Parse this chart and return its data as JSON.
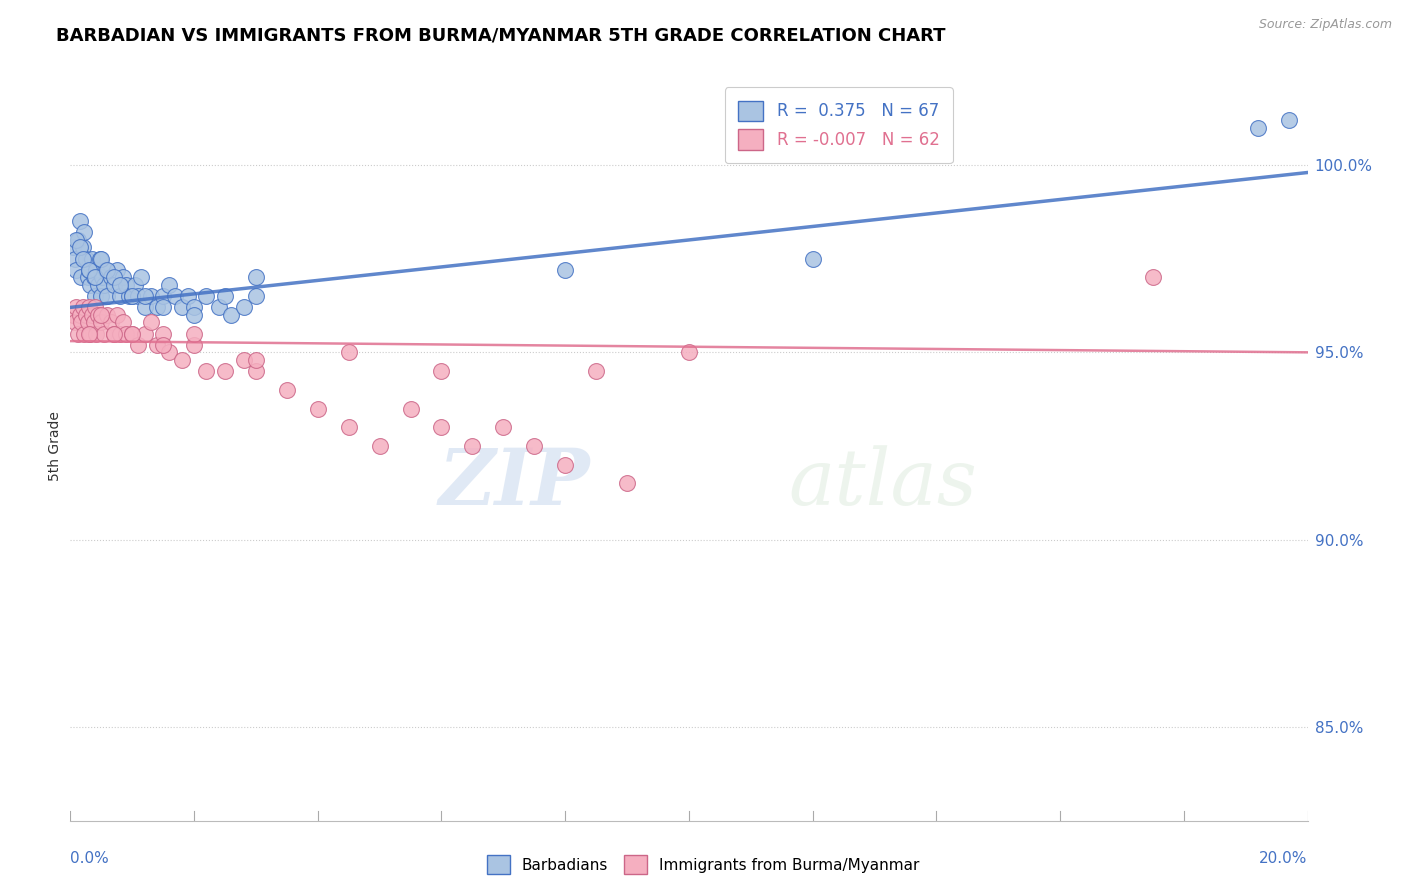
{
  "title": "BARBADIAN VS IMMIGRANTS FROM BURMA/MYANMAR 5TH GRADE CORRELATION CHART",
  "source": "Source: ZipAtlas.com",
  "ylabel": "5th Grade",
  "xlim": [
    0.0,
    20.0
  ],
  "ylim": [
    82.5,
    102.5
  ],
  "yticks_right": [
    85.0,
    90.0,
    95.0,
    100.0
  ],
  "blue_R": 0.375,
  "blue_N": 67,
  "pink_R": -0.007,
  "pink_N": 62,
  "blue_color": "#aac4e2",
  "pink_color": "#f5afc0",
  "blue_line_color": "#4472c4",
  "pink_line_color": "#e07090",
  "legend_label_blue": "Barbadians",
  "legend_label_pink": "Immigrants from Burma/Myanmar",
  "watermark_zip": "ZIP",
  "watermark_atlas": "atlas",
  "blue_scatter_x": [
    0.05,
    0.08,
    0.1,
    0.12,
    0.15,
    0.18,
    0.2,
    0.22,
    0.25,
    0.28,
    0.3,
    0.32,
    0.35,
    0.38,
    0.4,
    0.42,
    0.45,
    0.48,
    0.5,
    0.52,
    0.55,
    0.58,
    0.6,
    0.65,
    0.7,
    0.75,
    0.8,
    0.85,
    0.9,
    0.95,
    1.0,
    1.05,
    1.1,
    1.15,
    1.2,
    1.3,
    1.4,
    1.5,
    1.6,
    1.7,
    1.8,
    1.9,
    2.0,
    2.2,
    2.4,
    2.6,
    2.8,
    3.0,
    0.1,
    0.15,
    0.2,
    0.3,
    0.4,
    0.5,
    0.6,
    0.7,
    0.8,
    1.0,
    1.2,
    1.5,
    2.0,
    2.5,
    3.0,
    8.0,
    12.0,
    19.2,
    19.7
  ],
  "blue_scatter_y": [
    97.8,
    97.5,
    97.2,
    98.0,
    98.5,
    97.0,
    97.8,
    98.2,
    97.5,
    97.0,
    97.2,
    96.8,
    97.5,
    97.0,
    96.5,
    97.2,
    96.8,
    97.5,
    96.5,
    97.0,
    96.8,
    97.2,
    96.5,
    97.0,
    96.8,
    97.2,
    96.5,
    97.0,
    96.8,
    96.5,
    96.5,
    96.8,
    96.5,
    97.0,
    96.2,
    96.5,
    96.2,
    96.5,
    96.8,
    96.5,
    96.2,
    96.5,
    96.2,
    96.5,
    96.2,
    96.0,
    96.2,
    96.5,
    98.0,
    97.8,
    97.5,
    97.2,
    97.0,
    97.5,
    97.2,
    97.0,
    96.8,
    96.5,
    96.5,
    96.2,
    96.0,
    96.5,
    97.0,
    97.2,
    97.5,
    101.0,
    101.2
  ],
  "pink_scatter_x": [
    0.05,
    0.08,
    0.1,
    0.12,
    0.15,
    0.18,
    0.2,
    0.22,
    0.25,
    0.28,
    0.3,
    0.32,
    0.35,
    0.38,
    0.4,
    0.42,
    0.45,
    0.5,
    0.55,
    0.6,
    0.65,
    0.7,
    0.75,
    0.8,
    0.85,
    0.9,
    1.0,
    1.1,
    1.2,
    1.3,
    1.4,
    1.5,
    1.6,
    1.8,
    2.0,
    2.2,
    2.5,
    2.8,
    3.0,
    3.5,
    4.0,
    4.5,
    5.0,
    5.5,
    6.0,
    6.5,
    7.0,
    7.5,
    8.0,
    9.0,
    0.3,
    0.5,
    0.7,
    1.0,
    1.5,
    2.0,
    3.0,
    4.5,
    6.0,
    8.5,
    10.0,
    17.5
  ],
  "pink_scatter_y": [
    96.0,
    95.8,
    96.2,
    95.5,
    96.0,
    95.8,
    96.2,
    95.5,
    96.0,
    95.8,
    96.2,
    95.5,
    96.0,
    95.8,
    96.2,
    95.5,
    96.0,
    95.8,
    95.5,
    96.0,
    95.8,
    95.5,
    96.0,
    95.5,
    95.8,
    95.5,
    95.5,
    95.2,
    95.5,
    95.8,
    95.2,
    95.5,
    95.0,
    94.8,
    95.2,
    94.5,
    94.5,
    94.8,
    94.5,
    94.0,
    93.5,
    93.0,
    92.5,
    93.5,
    93.0,
    92.5,
    93.0,
    92.5,
    92.0,
    91.5,
    95.5,
    96.0,
    95.5,
    95.5,
    95.2,
    95.5,
    94.8,
    95.0,
    94.5,
    94.5,
    95.0,
    97.0
  ],
  "blue_trend_x": [
    0.0,
    20.0
  ],
  "blue_trend_y": [
    96.2,
    99.8
  ],
  "pink_trend_x": [
    0.0,
    20.0
  ],
  "pink_trend_y": [
    95.3,
    95.0
  ]
}
